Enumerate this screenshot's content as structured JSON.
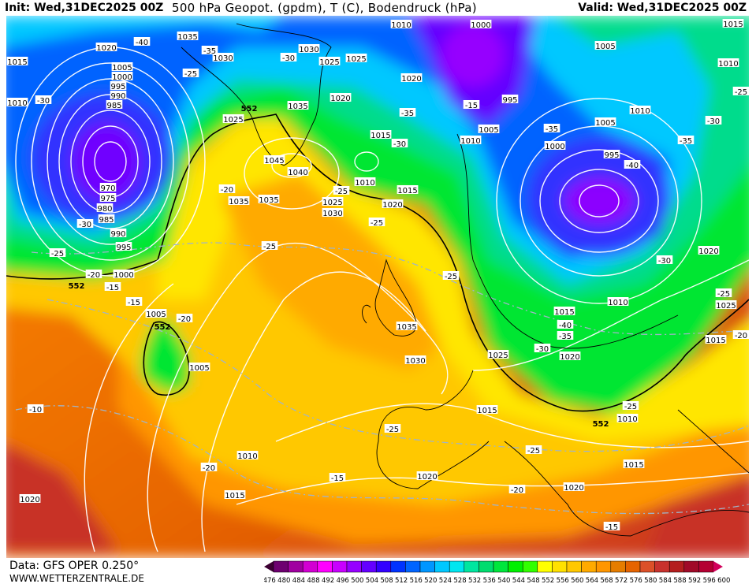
{
  "header": {
    "init": "Init: Wed,31DEC2025 00Z",
    "title": "500 hPa Geopot. (gpdm), T (C), Bodendruck (hPa)",
    "valid": "Valid: Wed,31DEC2025 00Z"
  },
  "footer": {
    "data_source": "Data: GFS OPER 0.250°",
    "website": "WWW.WETTERZENTRALE.DE"
  },
  "legend": {
    "unit": "gpdm",
    "values": [
      476,
      480,
      484,
      488,
      492,
      496,
      500,
      504,
      508,
      512,
      516,
      520,
      524,
      528,
      532,
      536,
      540,
      544,
      548,
      552,
      556,
      560,
      564,
      568,
      572,
      576,
      580,
      584,
      588,
      592,
      596,
      600
    ],
    "colors": [
      "#3c0032",
      "#6e0070",
      "#a000a0",
      "#d200d2",
      "#ff00ff",
      "#c800ff",
      "#9600ff",
      "#6400ff",
      "#3200ff",
      "#0032ff",
      "#0064ff",
      "#0096ff",
      "#00c8ff",
      "#00e6f0",
      "#00e6a0",
      "#00dc6e",
      "#00e63c",
      "#00f000",
      "#32ff00",
      "#ffff00",
      "#ffe100",
      "#ffc800",
      "#ffaa00",
      "#ff9600",
      "#e67d00",
      "#e66400",
      "#dc5028",
      "#c8322d",
      "#b41e1e",
      "#a00a28",
      "#b40032",
      "#d2005a"
    ]
  },
  "map": {
    "geopot_contour_labels": [
      "552",
      "552",
      "552",
      "552"
    ],
    "pressure_labels": [
      "1015",
      "1010",
      "1020",
      "1005",
      "1000",
      "995",
      "990",
      "985",
      "970",
      "975",
      "980",
      "985",
      "990",
      "995",
      "1000",
      "1005",
      "1005",
      "1035",
      "1030",
      "1030",
      "1025",
      "1025",
      "1020",
      "1010",
      "1000",
      "1005",
      "1015",
      "1010",
      "1035",
      "1025",
      "1020",
      "1015",
      "1010",
      "1005",
      "1000",
      "995",
      "995",
      "1005",
      "1010",
      "1045",
      "1040",
      "1035",
      "1035",
      "1010",
      "1015",
      "1025",
      "1030",
      "1020",
      "1035",
      "1030",
      "1015",
      "1010",
      "1015",
      "1025",
      "1020",
      "1025",
      "1020",
      "1015",
      "1010",
      "1015",
      "1010",
      "1015",
      "1020",
      "1020",
      "1020"
    ],
    "temperature_labels": [
      "-40",
      "-35",
      "-30",
      "-25",
      "-30",
      "-20",
      "-25",
      "-25",
      "-35",
      "-30",
      "-15",
      "-35",
      "-40",
      "-35",
      "-30",
      "-25",
      "-25",
      "-30",
      "-25",
      "-20",
      "-15",
      "-15",
      "-20",
      "-25",
      "-40",
      "-35",
      "-30",
      "-30",
      "-25",
      "-20",
      "-25",
      "-10",
      "-25",
      "-25",
      "-20",
      "-15",
      "-20",
      "-15"
    ]
  }
}
